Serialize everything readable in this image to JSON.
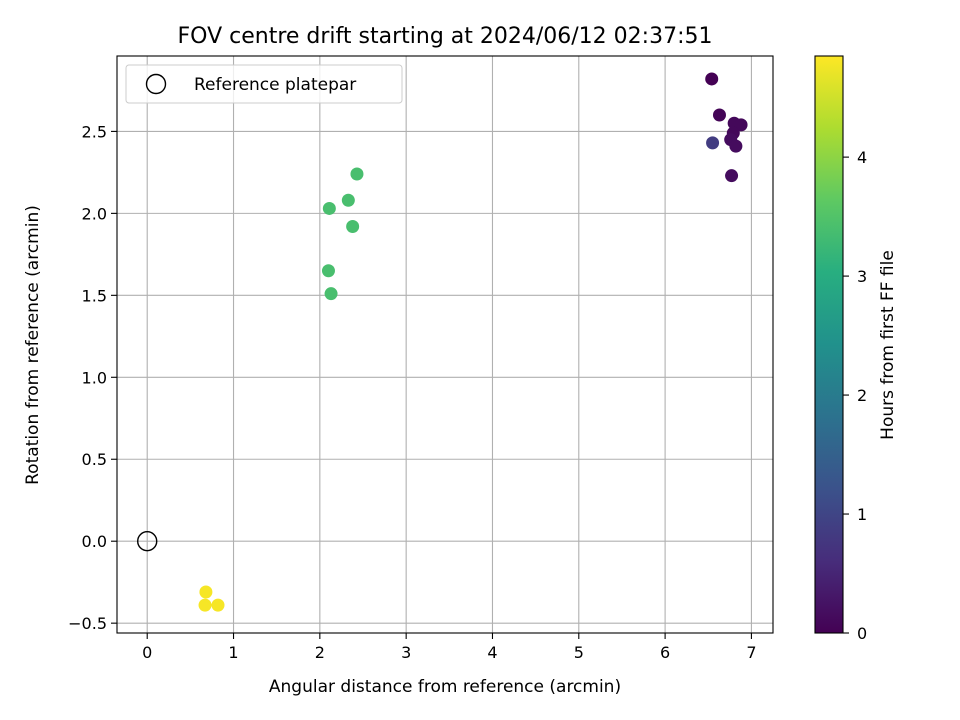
{
  "chart_data": {
    "type": "scatter",
    "title": "FOV centre drift starting at 2024/06/12 02:37:51",
    "xlabel": "Angular distance from reference (arcmin)",
    "ylabel": "Rotation from reference (arcmin)",
    "xlim": [
      -0.35,
      7.25
    ],
    "ylim": [
      -0.56,
      2.96
    ],
    "xticks": [
      0,
      1,
      2,
      3,
      4,
      5,
      6,
      7
    ],
    "xtick_labels": [
      "0",
      "1",
      "2",
      "3",
      "4",
      "5",
      "6",
      "7"
    ],
    "yticks": [
      -0.5,
      0.0,
      0.5,
      1.0,
      1.5,
      2.0,
      2.5
    ],
    "ytick_labels": [
      "−0.5",
      "0.0",
      "0.5",
      "1.0",
      "1.5",
      "2.0",
      "2.5"
    ],
    "grid": true,
    "legend": {
      "placement": "top-left",
      "entries": [
        "Reference platepar"
      ]
    },
    "reference_point": {
      "name": "Reference platepar",
      "x": 0.0,
      "y": 0.0,
      "marker": "open-circle",
      "color": "#000000"
    },
    "colorbar": {
      "label": "Hours from first FF file",
      "range": [
        0,
        4.85
      ],
      "ticks": [
        0,
        1,
        2,
        3,
        4
      ],
      "tick_labels": [
        "0",
        "1",
        "2",
        "3",
        "4"
      ],
      "colormap": "viridis"
    },
    "points": [
      {
        "x": 6.54,
        "y": 2.82,
        "c": 0.0
      },
      {
        "x": 6.63,
        "y": 2.6,
        "c": 0.05
      },
      {
        "x": 6.8,
        "y": 2.55,
        "c": 0.1
      },
      {
        "x": 6.88,
        "y": 2.54,
        "c": 0.1
      },
      {
        "x": 6.79,
        "y": 2.49,
        "c": 0.1
      },
      {
        "x": 6.76,
        "y": 2.45,
        "c": 0.15
      },
      {
        "x": 6.82,
        "y": 2.41,
        "c": 0.15
      },
      {
        "x": 6.77,
        "y": 2.23,
        "c": 0.15
      },
      {
        "x": 6.55,
        "y": 2.43,
        "c": 0.85
      },
      {
        "x": 2.43,
        "y": 2.24,
        "c": 3.4
      },
      {
        "x": 2.11,
        "y": 2.03,
        "c": 3.4
      },
      {
        "x": 2.33,
        "y": 2.08,
        "c": 3.4
      },
      {
        "x": 2.38,
        "y": 1.92,
        "c": 3.4
      },
      {
        "x": 2.1,
        "y": 1.65,
        "c": 3.4
      },
      {
        "x": 2.13,
        "y": 1.51,
        "c": 3.4
      },
      {
        "x": 0.68,
        "y": -0.31,
        "c": 4.8
      },
      {
        "x": 0.67,
        "y": -0.39,
        "c": 4.8
      },
      {
        "x": 0.82,
        "y": -0.39,
        "c": 4.8
      }
    ]
  }
}
